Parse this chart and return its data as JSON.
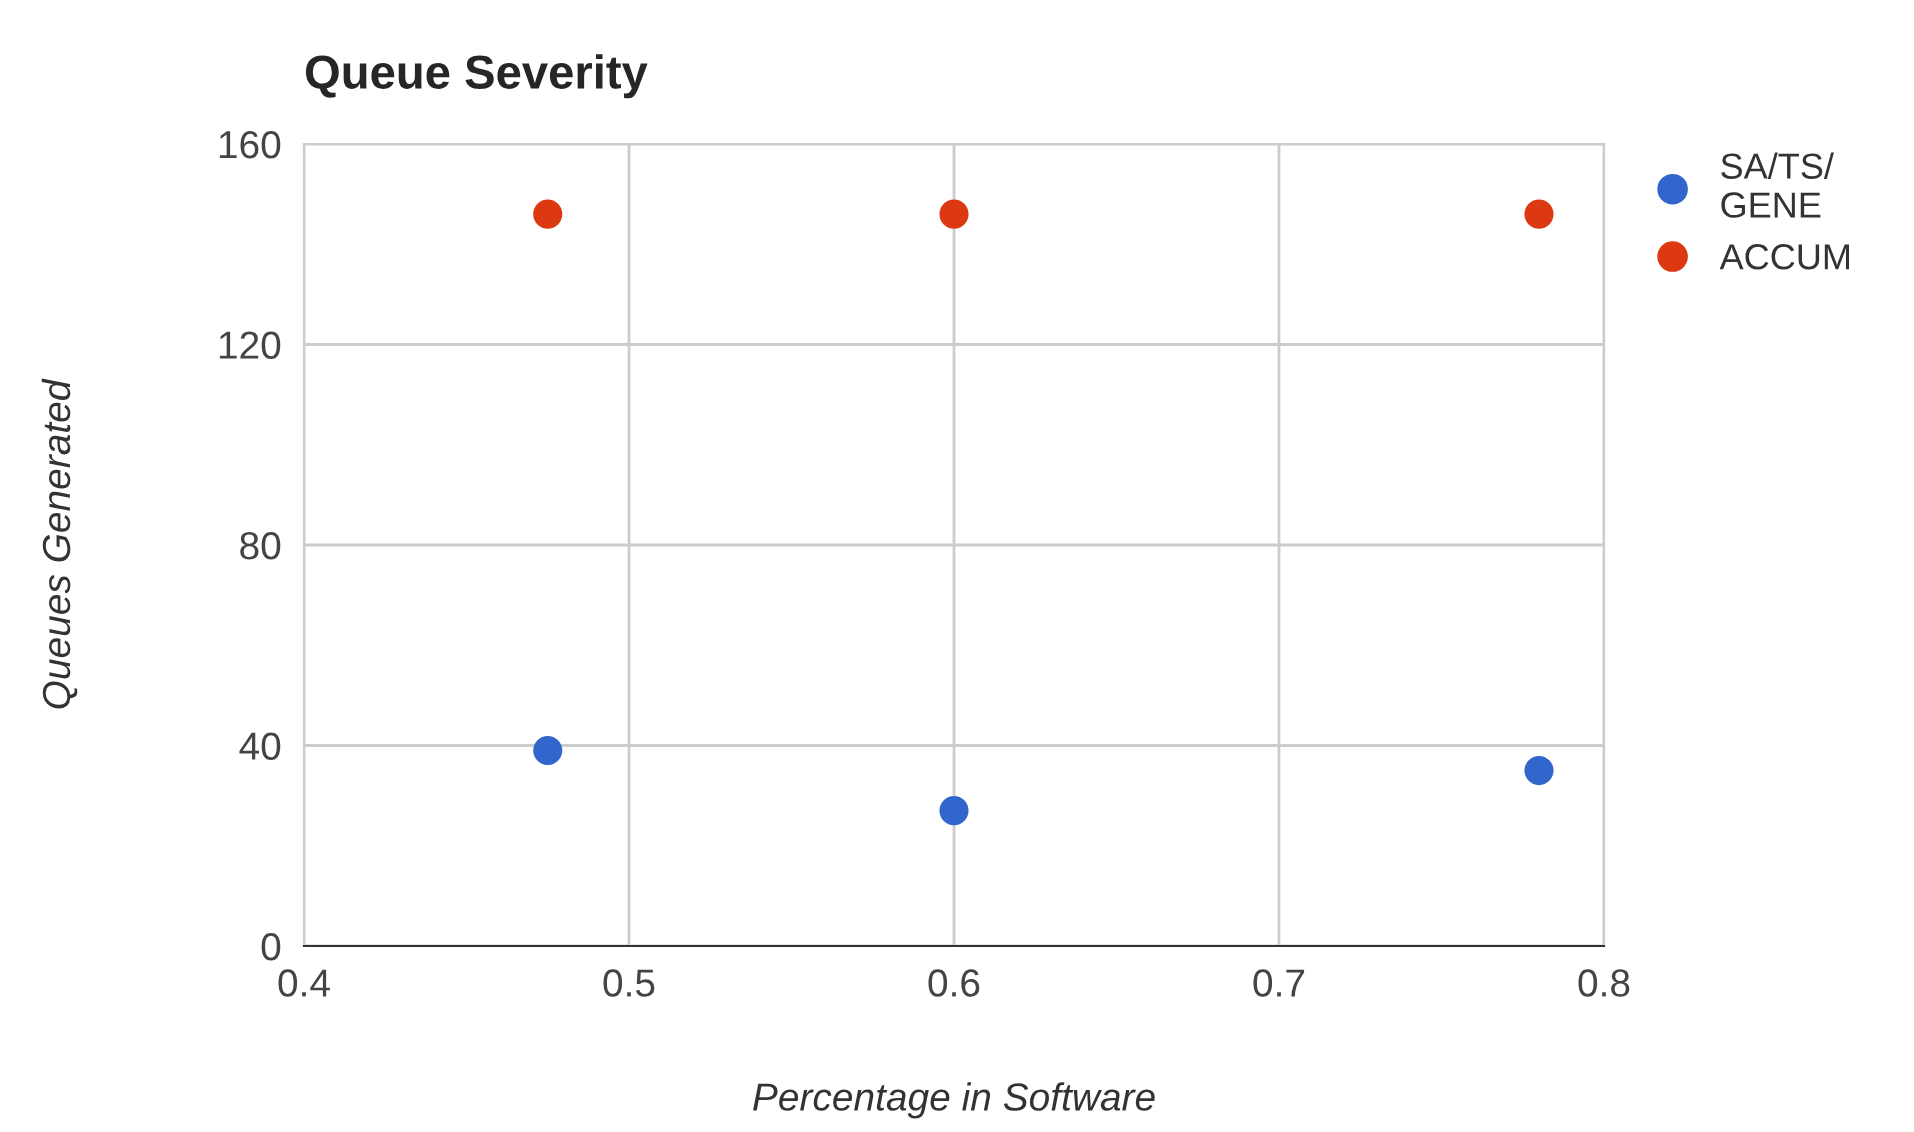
{
  "chart_data": {
    "type": "scatter",
    "title": "Queue Severity",
    "xlabel": "Percentage in Software",
    "ylabel": "Queues Generated",
    "series": [
      {
        "name": "SA/TS/\nGENE",
        "color": "#3366cc",
        "x": [
          0.475,
          0.6,
          0.78
        ],
        "values": [
          39,
          27,
          35
        ]
      },
      {
        "name": "ACCUM",
        "color": "#dc3912",
        "x": [
          0.475,
          0.6,
          0.78
        ],
        "values": [
          146,
          146,
          146
        ]
      }
    ],
    "xlim": [
      0.4,
      0.8
    ],
    "xticks": [
      0.4,
      0.5,
      0.6,
      0.7,
      0.8
    ],
    "ylim": [
      0,
      160
    ],
    "yticks": [
      0,
      40,
      80,
      120,
      160
    ],
    "grid": true,
    "legend": "top right",
    "marker": "circle"
  }
}
